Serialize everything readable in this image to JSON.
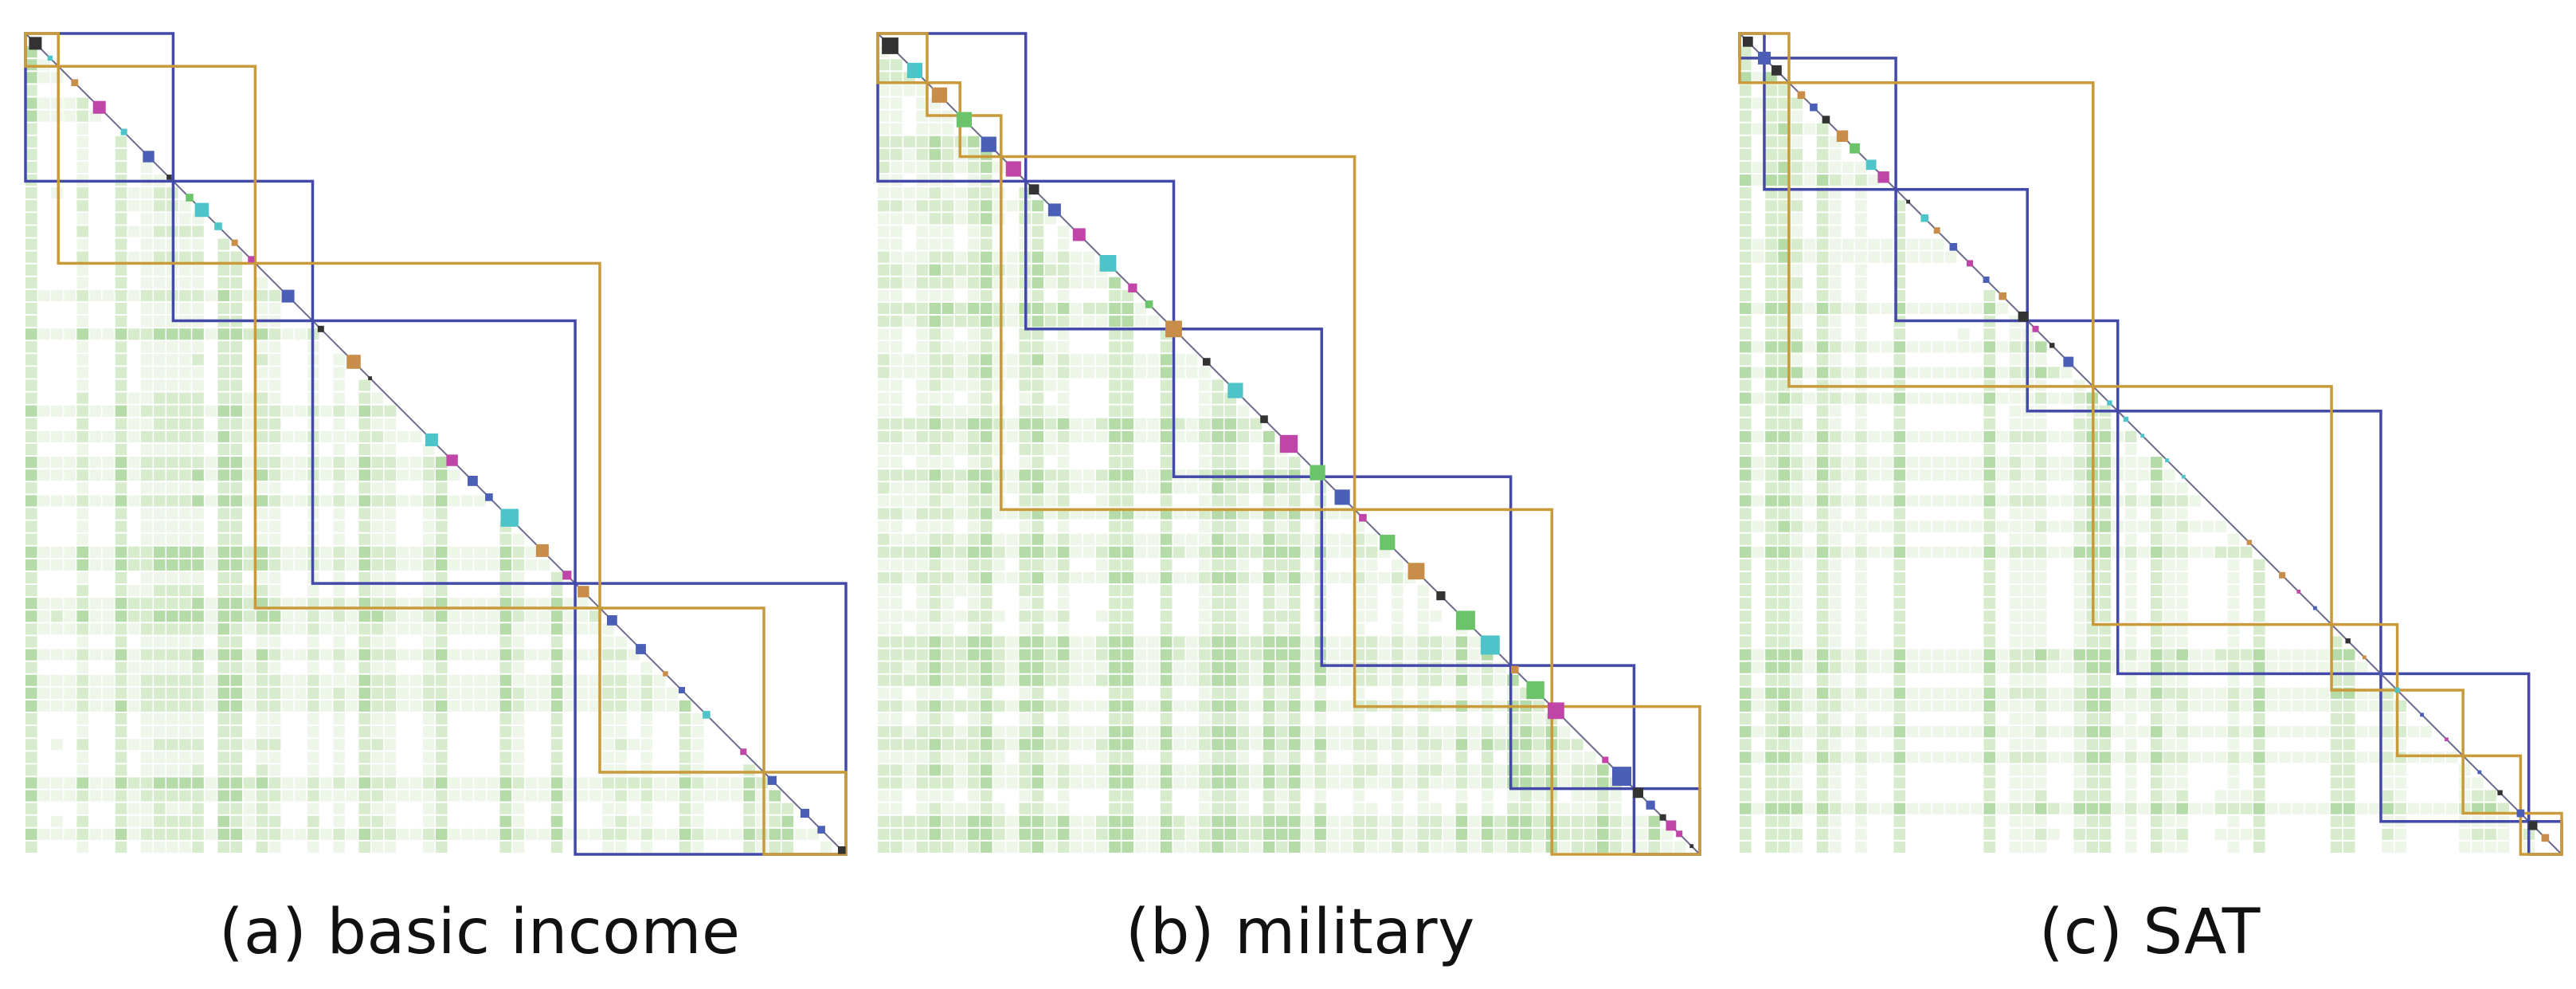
{
  "figure": {
    "panels": [
      {
        "id": "a",
        "caption": "(a) basic income",
        "blue_boxes": [
          [
            0,
            0.18
          ],
          [
            0.18,
            0.35
          ],
          [
            0.35,
            0.67
          ],
          [
            0.67,
            1.0
          ]
        ],
        "orange_boxes": [
          [
            0,
            0.04
          ],
          [
            0.04,
            0.28
          ],
          [
            0.28,
            0.7
          ],
          [
            0.7,
            0.9
          ],
          [
            0.9,
            1.0
          ]
        ],
        "diag_markers": [
          {
            "t": 0.012,
            "c": "dark",
            "s": 1.0
          },
          {
            "t": 0.03,
            "c": "cyan",
            "s": 0.4
          },
          {
            "t": 0.06,
            "c": "olive",
            "s": 0.55
          },
          {
            "t": 0.09,
            "c": "magenta",
            "s": 1.0
          },
          {
            "t": 0.12,
            "c": "cyan",
            "s": 0.5
          },
          {
            "t": 0.15,
            "c": "blue",
            "s": 0.9
          },
          {
            "t": 0.175,
            "c": "dark",
            "s": 0.4
          },
          {
            "t": 0.2,
            "c": "green",
            "s": 0.6
          },
          {
            "t": 0.215,
            "c": "cyan",
            "s": 1.1
          },
          {
            "t": 0.235,
            "c": "cyan",
            "s": 0.6
          },
          {
            "t": 0.255,
            "c": "olive",
            "s": 0.5
          },
          {
            "t": 0.275,
            "c": "magenta",
            "s": 0.5
          },
          {
            "t": 0.32,
            "c": "blue",
            "s": 1.0
          },
          {
            "t": 0.36,
            "c": "dark",
            "s": 0.5
          },
          {
            "t": 0.4,
            "c": "olive",
            "s": 1.1
          },
          {
            "t": 0.42,
            "c": "dark",
            "s": 0.3
          },
          {
            "t": 0.495,
            "c": "cyan",
            "s": 1.0
          },
          {
            "t": 0.52,
            "c": "magenta",
            "s": 0.9
          },
          {
            "t": 0.545,
            "c": "blue",
            "s": 0.8
          },
          {
            "t": 0.565,
            "c": "blue",
            "s": 0.6
          },
          {
            "t": 0.59,
            "c": "cyan",
            "s": 1.4
          },
          {
            "t": 0.63,
            "c": "olive",
            "s": 1.0
          },
          {
            "t": 0.66,
            "c": "magenta",
            "s": 0.7
          },
          {
            "t": 0.68,
            "c": "olive",
            "s": 0.9
          },
          {
            "t": 0.715,
            "c": "blue",
            "s": 0.8
          },
          {
            "t": 0.75,
            "c": "blue",
            "s": 0.8
          },
          {
            "t": 0.78,
            "c": "olive",
            "s": 0.4
          },
          {
            "t": 0.8,
            "c": "blue",
            "s": 0.5
          },
          {
            "t": 0.83,
            "c": "cyan",
            "s": 0.6
          },
          {
            "t": 0.875,
            "c": "magenta",
            "s": 0.5
          },
          {
            "t": 0.91,
            "c": "blue",
            "s": 0.7
          },
          {
            "t": 0.95,
            "c": "blue",
            "s": 0.7
          },
          {
            "t": 0.97,
            "c": "blue",
            "s": 0.6
          },
          {
            "t": 0.995,
            "c": "dark",
            "s": 0.6
          }
        ]
      },
      {
        "id": "b",
        "caption": "(b) military",
        "blue_boxes": [
          [
            0,
            0.18
          ],
          [
            0.18,
            0.36
          ],
          [
            0.36,
            0.54
          ],
          [
            0.54,
            0.77
          ],
          [
            0.77,
            0.92
          ],
          [
            0.92,
            1.0
          ]
        ],
        "orange_boxes": [
          [
            0,
            0.06
          ],
          [
            0.06,
            0.1
          ],
          [
            0.1,
            0.15
          ],
          [
            0.15,
            0.58
          ],
          [
            0.58,
            0.82
          ],
          [
            0.82,
            1.0
          ]
        ],
        "diag_markers": [
          {
            "t": 0.015,
            "c": "dark",
            "s": 1.3
          },
          {
            "t": 0.045,
            "c": "cyan",
            "s": 1.2
          },
          {
            "t": 0.075,
            "c": "olive",
            "s": 1.2
          },
          {
            "t": 0.105,
            "c": "green",
            "s": 1.2
          },
          {
            "t": 0.135,
            "c": "blue",
            "s": 1.2
          },
          {
            "t": 0.165,
            "c": "magenta",
            "s": 1.2
          },
          {
            "t": 0.19,
            "c": "dark",
            "s": 0.8
          },
          {
            "t": 0.215,
            "c": "blue",
            "s": 1.0
          },
          {
            "t": 0.245,
            "c": "magenta",
            "s": 1.0
          },
          {
            "t": 0.28,
            "c": "cyan",
            "s": 1.3
          },
          {
            "t": 0.31,
            "c": "magenta",
            "s": 0.7
          },
          {
            "t": 0.33,
            "c": "green",
            "s": 0.6
          },
          {
            "t": 0.36,
            "c": "olive",
            "s": 1.3
          },
          {
            "t": 0.4,
            "c": "dark",
            "s": 0.6
          },
          {
            "t": 0.435,
            "c": "cyan",
            "s": 1.2
          },
          {
            "t": 0.47,
            "c": "dark",
            "s": 0.6
          },
          {
            "t": 0.5,
            "c": "magenta",
            "s": 1.4
          },
          {
            "t": 0.535,
            "c": "green",
            "s": 1.2
          },
          {
            "t": 0.565,
            "c": "blue",
            "s": 1.2
          },
          {
            "t": 0.59,
            "c": "magenta",
            "s": 0.6
          },
          {
            "t": 0.62,
            "c": "green",
            "s": 1.2
          },
          {
            "t": 0.655,
            "c": "olive",
            "s": 1.3
          },
          {
            "t": 0.685,
            "c": "dark",
            "s": 0.7
          },
          {
            "t": 0.715,
            "c": "green",
            "s": 1.5
          },
          {
            "t": 0.745,
            "c": "cyan",
            "s": 1.5
          },
          {
            "t": 0.775,
            "c": "olive",
            "s": 0.6
          },
          {
            "t": 0.8,
            "c": "green",
            "s": 1.4
          },
          {
            "t": 0.825,
            "c": "magenta",
            "s": 1.3
          },
          {
            "t": 0.885,
            "c": "magenta",
            "s": 0.5
          },
          {
            "t": 0.905,
            "c": "blue",
            "s": 1.5
          },
          {
            "t": 0.925,
            "c": "dark",
            "s": 0.8
          },
          {
            "t": 0.94,
            "c": "blue",
            "s": 0.7
          },
          {
            "t": 0.955,
            "c": "dark",
            "s": 0.5
          },
          {
            "t": 0.965,
            "c": "magenta",
            "s": 0.8
          },
          {
            "t": 0.975,
            "c": "magenta",
            "s": 0.5
          },
          {
            "t": 0.99,
            "c": "dark",
            "s": 0.3
          }
        ]
      },
      {
        "id": "c",
        "caption": "(c) SAT",
        "blue_boxes": [
          [
            0,
            0.03
          ],
          [
            0.03,
            0.19
          ],
          [
            0.19,
            0.35
          ],
          [
            0.35,
            0.46
          ],
          [
            0.46,
            0.78
          ],
          [
            0.78,
            0.96
          ],
          [
            0.96,
            1.0
          ]
        ],
        "orange_boxes": [
          [
            0,
            0.06
          ],
          [
            0.06,
            0.43
          ],
          [
            0.43,
            0.72
          ],
          [
            0.72,
            0.8
          ],
          [
            0.8,
            0.88
          ],
          [
            0.88,
            0.95
          ],
          [
            0.95,
            1.0
          ]
        ],
        "diag_markers": [
          {
            "t": 0.01,
            "c": "dark",
            "s": 0.8
          },
          {
            "t": 0.03,
            "c": "blue",
            "s": 1.0
          },
          {
            "t": 0.045,
            "c": "dark",
            "s": 0.8
          },
          {
            "t": 0.075,
            "c": "olive",
            "s": 0.6
          },
          {
            "t": 0.09,
            "c": "blue",
            "s": 0.6
          },
          {
            "t": 0.105,
            "c": "dark",
            "s": 0.6
          },
          {
            "t": 0.125,
            "c": "olive",
            "s": 0.9
          },
          {
            "t": 0.14,
            "c": "green",
            "s": 0.8
          },
          {
            "t": 0.16,
            "c": "cyan",
            "s": 0.8
          },
          {
            "t": 0.175,
            "c": "magenta",
            "s": 0.9
          },
          {
            "t": 0.205,
            "c": "dark",
            "s": 0.3
          },
          {
            "t": 0.225,
            "c": "cyan",
            "s": 0.6
          },
          {
            "t": 0.24,
            "c": "olive",
            "s": 0.5
          },
          {
            "t": 0.26,
            "c": "blue",
            "s": 0.6
          },
          {
            "t": 0.28,
            "c": "magenta",
            "s": 0.5
          },
          {
            "t": 0.3,
            "c": "blue",
            "s": 0.5
          },
          {
            "t": 0.32,
            "c": "olive",
            "s": 0.6
          },
          {
            "t": 0.345,
            "c": "dark",
            "s": 0.8
          },
          {
            "t": 0.36,
            "c": "magenta",
            "s": 0.5
          },
          {
            "t": 0.38,
            "c": "dark",
            "s": 0.4
          },
          {
            "t": 0.4,
            "c": "blue",
            "s": 0.8
          },
          {
            "t": 0.45,
            "c": "cyan",
            "s": 0.4
          },
          {
            "t": 0.47,
            "c": "cyan",
            "s": 0.4
          },
          {
            "t": 0.49,
            "c": "cyan",
            "s": 0.3
          },
          {
            "t": 0.52,
            "c": "cyan",
            "s": 0.3
          },
          {
            "t": 0.54,
            "c": "cyan",
            "s": 0.3
          },
          {
            "t": 0.62,
            "c": "olive",
            "s": 0.4
          },
          {
            "t": 0.66,
            "c": "olive",
            "s": 0.5
          },
          {
            "t": 0.68,
            "c": "magenta",
            "s": 0.3
          },
          {
            "t": 0.7,
            "c": "blue",
            "s": 0.3
          },
          {
            "t": 0.74,
            "c": "dark",
            "s": 0.4
          },
          {
            "t": 0.76,
            "c": "olive",
            "s": 0.3
          },
          {
            "t": 0.78,
            "c": "blue",
            "s": 0.3
          },
          {
            "t": 0.8,
            "c": "cyan",
            "s": 0.4
          },
          {
            "t": 0.83,
            "c": "blue",
            "s": 0.3
          },
          {
            "t": 0.86,
            "c": "magenta",
            "s": 0.3
          },
          {
            "t": 0.9,
            "c": "blue",
            "s": 0.3
          },
          {
            "t": 0.925,
            "c": "dark",
            "s": 0.4
          },
          {
            "t": 0.95,
            "c": "blue",
            "s": 0.6
          },
          {
            "t": 0.965,
            "c": "dark",
            "s": 0.7
          },
          {
            "t": 0.98,
            "c": "olive",
            "s": 0.6
          }
        ]
      }
    ]
  },
  "colors": {
    "blue_box": "#4349a8",
    "orange_box": "#c99a3a",
    "dark": "#333333",
    "blue": "#4a5fb5",
    "cyan": "#4cc4c8",
    "olive": "#c98d4a",
    "magenta": "#bf45a8",
    "green": "#6cc46a",
    "heat_light": "#eef6ea",
    "heat_mid": "#d6eccc",
    "heat_dark": "#b5dca8"
  }
}
